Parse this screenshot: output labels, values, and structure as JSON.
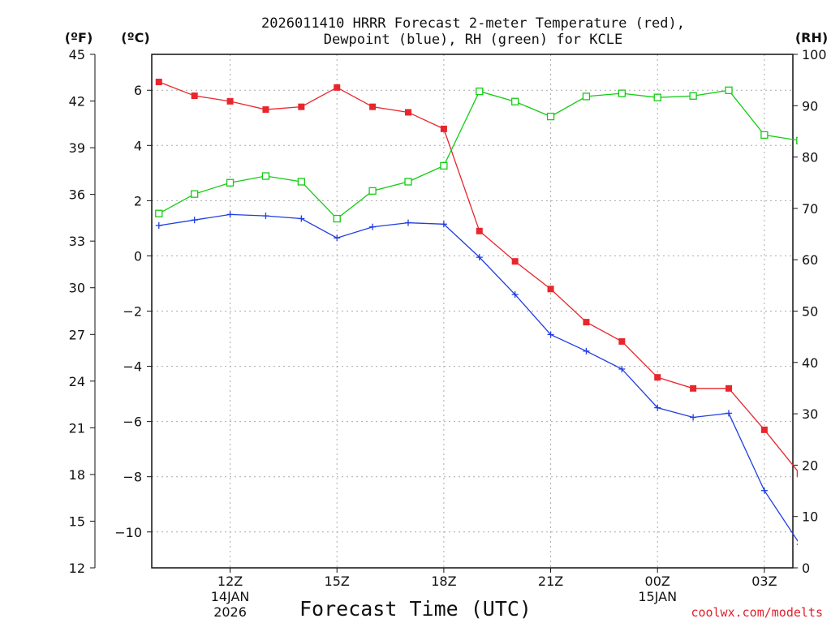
{
  "chart_data": {
    "type": "line",
    "title_line1": "2026011410 HRRR Forecast 2-meter Temperature (red),",
    "title_line2": "Dewpoint (blue), RH (green) for KCLE",
    "xlabel": "Forecast Time (UTC)",
    "credit": "coolwx.com/modelts",
    "left_unit_f": "(ºF)",
    "left_unit_c": "(ºC)",
    "right_unit": "(RH)",
    "x_hours": [
      10,
      11,
      12,
      13,
      14,
      15,
      16,
      17,
      18,
      19,
      20,
      21,
      22,
      23,
      24,
      25,
      26,
      27,
      28
    ],
    "x_range": [
      9.8,
      27.8
    ],
    "x_ticks": [
      {
        "hour": 12,
        "label": "12Z",
        "sub1": "14JAN",
        "sub2": "2026"
      },
      {
        "hour": 15,
        "label": "15Z",
        "sub1": "",
        "sub2": ""
      },
      {
        "hour": 18,
        "label": "18Z",
        "sub1": "",
        "sub2": ""
      },
      {
        "hour": 21,
        "label": "21Z",
        "sub1": "",
        "sub2": ""
      },
      {
        "hour": 24,
        "label": "00Z",
        "sub1": "15JAN",
        "sub2": ""
      },
      {
        "hour": 27,
        "label": "03Z",
        "sub1": "",
        "sub2": ""
      }
    ],
    "celsius_range": [
      -11.3,
      7.3
    ],
    "celsius_ticks": [
      "6",
      "4",
      "2",
      "0",
      "−2",
      "−4",
      "−6",
      "−8",
      "−10"
    ],
    "fahrenheit_range": [
      12,
      45
    ],
    "fahrenheit_ticks": [
      "45",
      "42",
      "39",
      "36",
      "33",
      "30",
      "27",
      "24",
      "21",
      "18",
      "15",
      "12"
    ],
    "rh_range": [
      0,
      100
    ],
    "rh_ticks": [
      "100",
      "90",
      "80",
      "70",
      "60",
      "50",
      "40",
      "30",
      "20",
      "10",
      "0"
    ],
    "series": [
      {
        "name": "Temperature",
        "unit": "C",
        "color": "#e8262c",
        "marker": "filled-square",
        "values": [
          6.3,
          5.8,
          5.6,
          5.3,
          5.4,
          6.1,
          5.4,
          5.2,
          4.6,
          0.9,
          -0.2,
          -1.2,
          -2.4,
          -3.1,
          -4.4,
          -4.8,
          -4.8,
          -6.3,
          -7.9
        ]
      },
      {
        "name": "Dewpoint",
        "unit": "C",
        "color": "#1f3de0",
        "marker": "plus",
        "values": [
          1.1,
          1.3,
          1.5,
          1.45,
          1.35,
          0.65,
          1.05,
          1.2,
          1.15,
          -0.05,
          -1.4,
          -2.85,
          -3.45,
          -4.1,
          -5.5,
          -5.85,
          -5.7,
          -8.5,
          -10.45
        ]
      },
      {
        "name": "RH",
        "unit": "%",
        "color": "#12cc12",
        "marker": "open-square",
        "values": [
          69,
          72.8,
          75,
          76.3,
          75.2,
          68,
          73.4,
          75.2,
          78.3,
          92.8,
          90.8,
          87.9,
          91.8,
          92.4,
          91.6,
          91.9,
          93,
          84.3,
          83.2
        ]
      }
    ]
  }
}
